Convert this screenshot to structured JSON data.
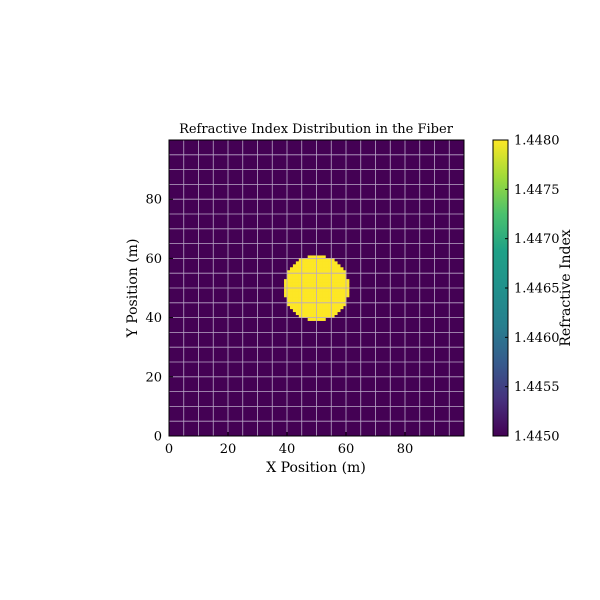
{
  "chart_data": {
    "type": "heatmap",
    "title": "Refractive Index Distribution in the Fiber",
    "xlabel": "X Position (m)",
    "ylabel": "Y Position (m)",
    "xlim": [
      0,
      100
    ],
    "ylim": [
      0,
      100
    ],
    "xticks": [
      "0",
      "20",
      "40",
      "60",
      "80"
    ],
    "yticks": [
      "0",
      "20",
      "40",
      "60",
      "80"
    ],
    "grid": true,
    "grid_step": 5,
    "colormap": "viridis",
    "background_value": 1.445,
    "core": {
      "shape": "circle",
      "center_x": 50,
      "center_y": 50,
      "radius": 11,
      "value": 1.448
    },
    "colorbar": {
      "label": "Refractive Index",
      "min": 1.445,
      "max": 1.448,
      "tick_labels": [
        "1.4450",
        "1.4455",
        "1.4460",
        "1.4465",
        "1.4470",
        "1.4475",
        "1.4480"
      ]
    },
    "colors": {
      "background": "#440154",
      "core": "#fde725",
      "grid": "#b9a7c7"
    }
  }
}
